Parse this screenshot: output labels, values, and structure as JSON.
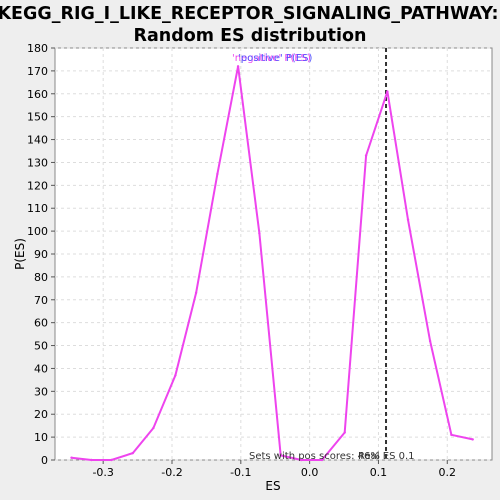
{
  "chart_data": {
    "type": "line",
    "title": [
      "KEGG_RIG_I_LIKE_RECEPTOR_SIGNALING_PATHWAY:",
      "Random ES distribution"
    ],
    "xlabel": "ES",
    "ylabel": "P(ES)",
    "xlim": [
      -0.37,
      0.265
    ],
    "ylim": [
      0,
      180
    ],
    "x_ticks": [
      -0.3,
      -0.2,
      -0.1,
      0.0,
      0.1,
      0.2
    ],
    "x_tick_labels": [
      "-0.3",
      "-0.2",
      "-0.1",
      "0.0",
      "0.1",
      "0.2"
    ],
    "y_ticks": [
      0,
      10,
      20,
      30,
      40,
      50,
      60,
      70,
      80,
      90,
      100,
      110,
      120,
      130,
      140,
      150,
      160,
      170,
      180
    ],
    "grid": true,
    "series": [
      {
        "name": "",
        "color": "#ee44ee",
        "x": [
          -0.346,
          -0.317,
          -0.288,
          -0.257,
          -0.227,
          -0.195,
          -0.165,
          -0.134,
          -0.104,
          -0.073,
          -0.042,
          -0.012,
          0.018,
          0.051,
          0.082,
          0.113,
          0.143,
          0.175,
          0.206,
          0.237
        ],
        "y": [
          1,
          0,
          0,
          3,
          14,
          37,
          73,
          125,
          172,
          99,
          2,
          0,
          0,
          12,
          133,
          161,
          105,
          52,
          11,
          9
        ]
      }
    ],
    "reference_line": {
      "x": 0.111,
      "style": "dashed",
      "color": "#333333",
      "label": "Real ES 0.1"
    },
    "annotations": {
      "legend_overlap_text_1": "'negative' P(ES)",
      "legend_overlap_text_2": "'positive' P(ES)",
      "bottom_note": "Sets with pos scores: 46%"
    },
    "colors": {
      "background": "#eeeeee",
      "plot_background": "#ffffff",
      "line": "#ee44ee",
      "legend_negative": "#ee44ee",
      "legend_positive": "#5555ff",
      "gridline": "#dddddd"
    }
  }
}
